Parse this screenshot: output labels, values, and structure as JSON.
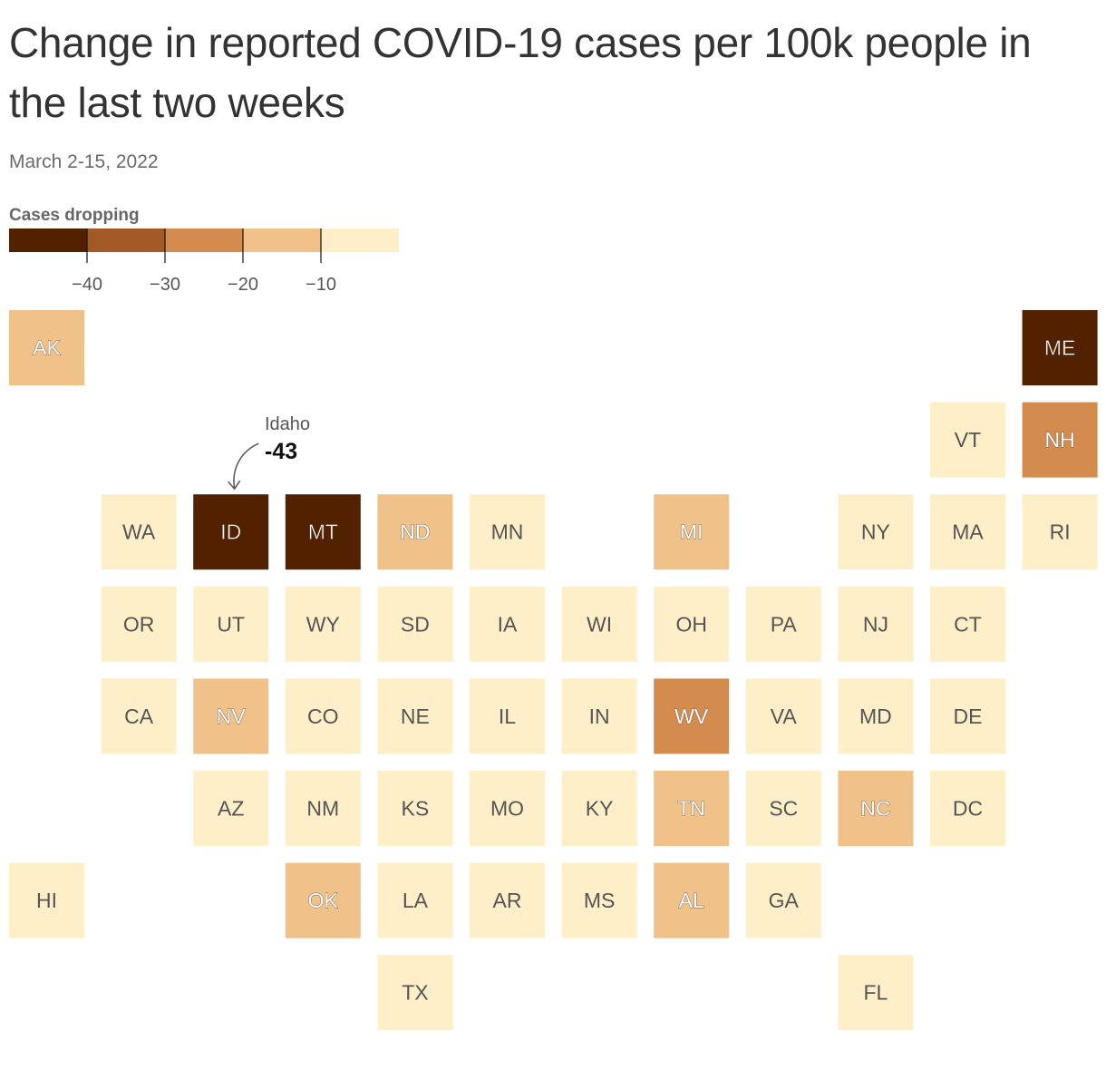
{
  "title": "Change in reported COVID-19 cases per 100k people in the last two weeks",
  "subtitle": "March 2-15, 2022",
  "legend": {
    "title": "Cases dropping",
    "bins": [
      {
        "color": "#522200"
      },
      {
        "color": "#a35a26"
      },
      {
        "color": "#d48c4e"
      },
      {
        "color": "#f0c189"
      },
      {
        "color": "#ffefc8"
      }
    ],
    "ticks": [
      "−40",
      "−30",
      "−20",
      "−10"
    ]
  },
  "annotation": {
    "state": "ID",
    "name": "Idaho",
    "value": "-43"
  },
  "chart_data": {
    "type": "tile-map",
    "tiles": [
      {
        "state": "AK",
        "row": 0,
        "col": 0,
        "bin": 3
      },
      {
        "state": "ME",
        "row": 0,
        "col": 11,
        "bin": 0
      },
      {
        "state": "VT",
        "row": 1,
        "col": 10,
        "bin": 4
      },
      {
        "state": "NH",
        "row": 1,
        "col": 11,
        "bin": 2
      },
      {
        "state": "WA",
        "row": 2,
        "col": 1,
        "bin": 4
      },
      {
        "state": "ID",
        "row": 2,
        "col": 2,
        "bin": 0
      },
      {
        "state": "MT",
        "row": 2,
        "col": 3,
        "bin": 0
      },
      {
        "state": "ND",
        "row": 2,
        "col": 4,
        "bin": 3
      },
      {
        "state": "MN",
        "row": 2,
        "col": 5,
        "bin": 4
      },
      {
        "state": "MI",
        "row": 2,
        "col": 7,
        "bin": 3
      },
      {
        "state": "NY",
        "row": 2,
        "col": 9,
        "bin": 4
      },
      {
        "state": "MA",
        "row": 2,
        "col": 10,
        "bin": 4
      },
      {
        "state": "RI",
        "row": 2,
        "col": 11,
        "bin": 4
      },
      {
        "state": "OR",
        "row": 3,
        "col": 1,
        "bin": 4
      },
      {
        "state": "UT",
        "row": 3,
        "col": 2,
        "bin": 4
      },
      {
        "state": "WY",
        "row": 3,
        "col": 3,
        "bin": 4
      },
      {
        "state": "SD",
        "row": 3,
        "col": 4,
        "bin": 4
      },
      {
        "state": "IA",
        "row": 3,
        "col": 5,
        "bin": 4
      },
      {
        "state": "WI",
        "row": 3,
        "col": 6,
        "bin": 4
      },
      {
        "state": "OH",
        "row": 3,
        "col": 7,
        "bin": 4
      },
      {
        "state": "PA",
        "row": 3,
        "col": 8,
        "bin": 4
      },
      {
        "state": "NJ",
        "row": 3,
        "col": 9,
        "bin": 4
      },
      {
        "state": "CT",
        "row": 3,
        "col": 10,
        "bin": 4
      },
      {
        "state": "CA",
        "row": 4,
        "col": 1,
        "bin": 4
      },
      {
        "state": "NV",
        "row": 4,
        "col": 2,
        "bin": 3
      },
      {
        "state": "CO",
        "row": 4,
        "col": 3,
        "bin": 4
      },
      {
        "state": "NE",
        "row": 4,
        "col": 4,
        "bin": 4
      },
      {
        "state": "IL",
        "row": 4,
        "col": 5,
        "bin": 4
      },
      {
        "state": "IN",
        "row": 4,
        "col": 6,
        "bin": 4
      },
      {
        "state": "WV",
        "row": 4,
        "col": 7,
        "bin": 2
      },
      {
        "state": "VA",
        "row": 4,
        "col": 8,
        "bin": 4
      },
      {
        "state": "MD",
        "row": 4,
        "col": 9,
        "bin": 4
      },
      {
        "state": "DE",
        "row": 4,
        "col": 10,
        "bin": 4
      },
      {
        "state": "AZ",
        "row": 5,
        "col": 2,
        "bin": 4
      },
      {
        "state": "NM",
        "row": 5,
        "col": 3,
        "bin": 4
      },
      {
        "state": "KS",
        "row": 5,
        "col": 4,
        "bin": 4
      },
      {
        "state": "MO",
        "row": 5,
        "col": 5,
        "bin": 4
      },
      {
        "state": "KY",
        "row": 5,
        "col": 6,
        "bin": 4
      },
      {
        "state": "TN",
        "row": 5,
        "col": 7,
        "bin": 3
      },
      {
        "state": "SC",
        "row": 5,
        "col": 8,
        "bin": 4
      },
      {
        "state": "NC",
        "row": 5,
        "col": 9,
        "bin": 3
      },
      {
        "state": "DC",
        "row": 5,
        "col": 10,
        "bin": 4
      },
      {
        "state": "HI",
        "row": 6,
        "col": 0,
        "bin": 4
      },
      {
        "state": "OK",
        "row": 6,
        "col": 3,
        "bin": 3
      },
      {
        "state": "LA",
        "row": 6,
        "col": 4,
        "bin": 4
      },
      {
        "state": "AR",
        "row": 6,
        "col": 5,
        "bin": 4
      },
      {
        "state": "MS",
        "row": 6,
        "col": 6,
        "bin": 4
      },
      {
        "state": "AL",
        "row": 6,
        "col": 7,
        "bin": 3
      },
      {
        "state": "GA",
        "row": 6,
        "col": 8,
        "bin": 4
      },
      {
        "state": "TX",
        "row": 7,
        "col": 4,
        "bin": 4
      },
      {
        "state": "FL",
        "row": 7,
        "col": 9,
        "bin": 4
      }
    ]
  }
}
